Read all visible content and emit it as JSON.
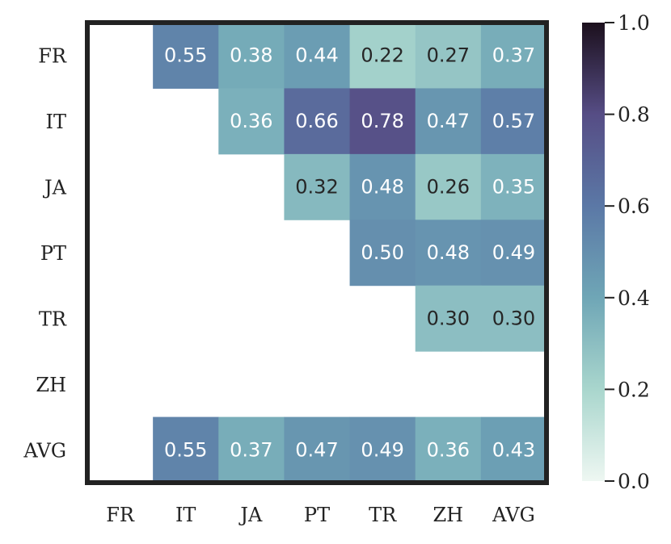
{
  "chart_data": {
    "type": "heatmap",
    "title": "",
    "xlabel": "",
    "ylabel": "",
    "x_categories": [
      "FR",
      "IT",
      "JA",
      "PT",
      "TR",
      "ZH",
      "AVG"
    ],
    "y_categories": [
      "FR",
      "IT",
      "JA",
      "PT",
      "TR",
      "ZH",
      "AVG"
    ],
    "values": [
      [
        null,
        0.55,
        0.38,
        0.44,
        0.22,
        0.27,
        0.37
      ],
      [
        null,
        null,
        0.36,
        0.66,
        0.78,
        0.47,
        0.57
      ],
      [
        null,
        null,
        null,
        0.32,
        0.48,
        0.26,
        0.35
      ],
      [
        null,
        null,
        null,
        null,
        0.5,
        0.48,
        0.49
      ],
      [
        null,
        null,
        null,
        null,
        null,
        0.3,
        0.3
      ],
      [
        null,
        null,
        null,
        null,
        null,
        null,
        null
      ],
      [
        null,
        0.55,
        0.37,
        0.47,
        0.49,
        0.36,
        0.43
      ]
    ],
    "colorbar": {
      "range": [
        0.0,
        1.0
      ],
      "ticks": [
        "0.0",
        "0.2",
        "0.4",
        "0.6",
        "0.8",
        "1.0"
      ],
      "colormap": [
        "#eef7f2",
        "#a9d6cd",
        "#6fa6b6",
        "#5b78a6",
        "#564d85",
        "#1c101d"
      ]
    },
    "grid": false,
    "legend": "none"
  }
}
